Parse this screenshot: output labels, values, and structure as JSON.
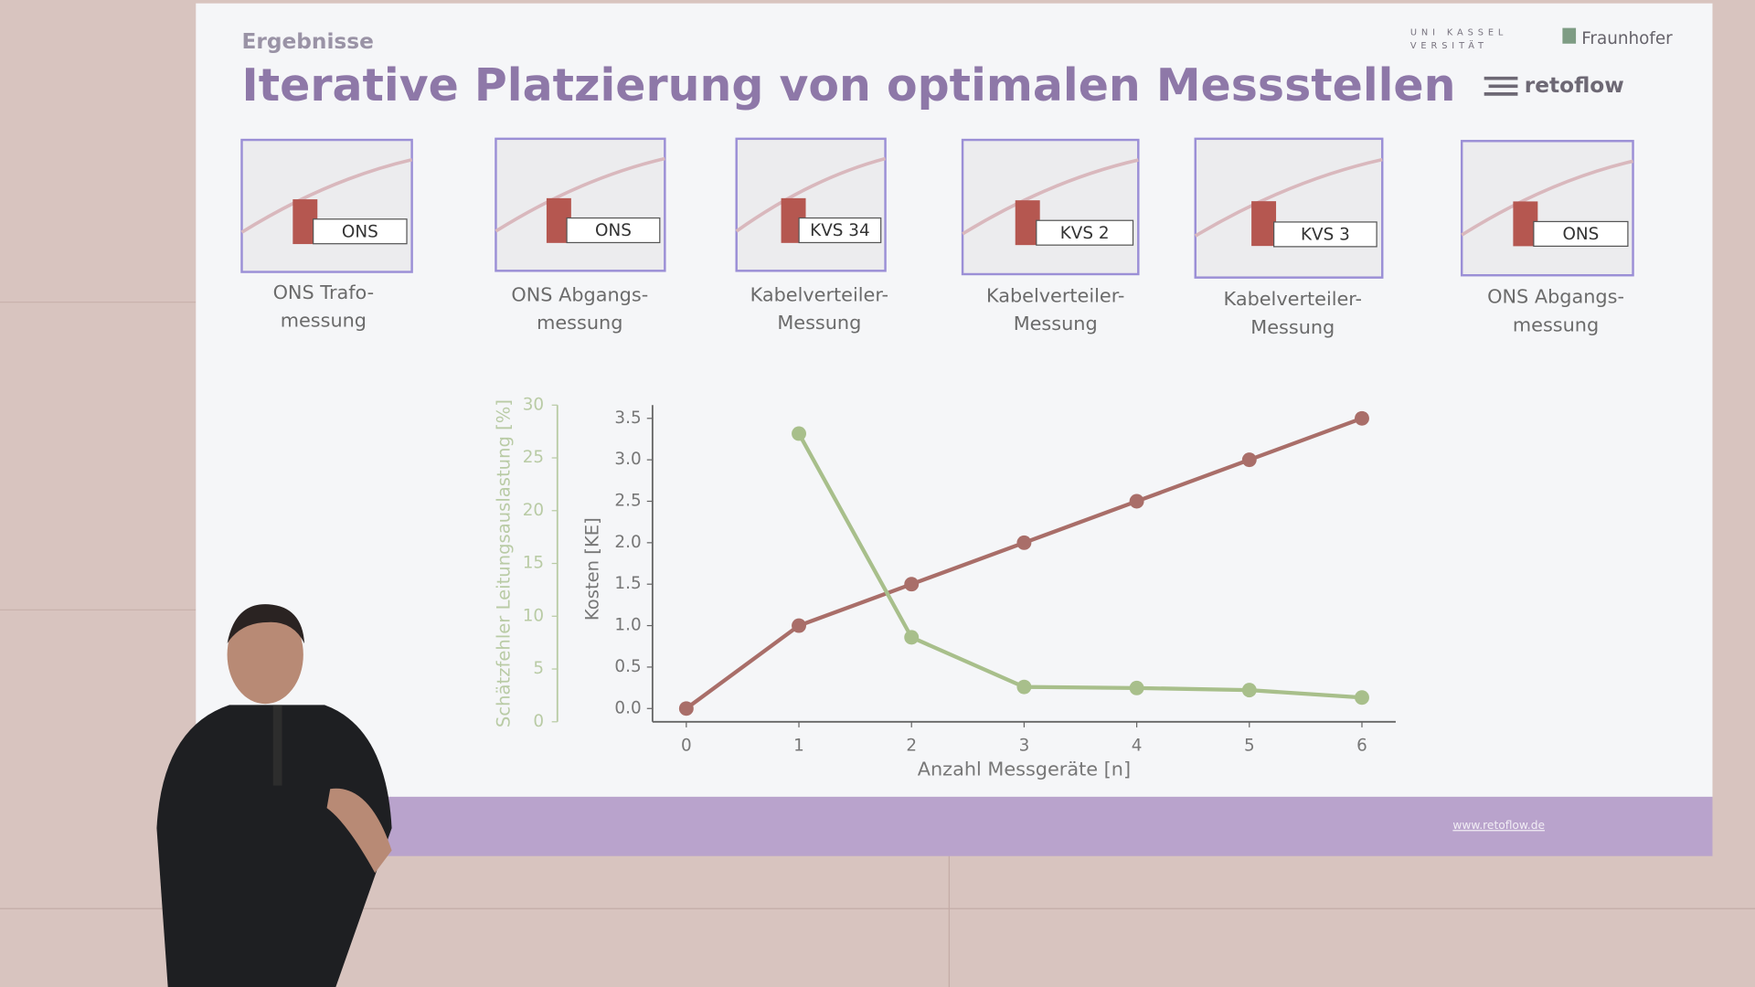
{
  "header": {
    "section": "Ergebnisse",
    "title": "Iterative Platzierung von optimalen Messstellen",
    "logos": {
      "university": [
        "UNI KASSEL",
        "VERSITÄT"
      ],
      "fraunhofer": "Fraunhofer",
      "company": "retoflow"
    }
  },
  "thumbnails": [
    {
      "label": "ONS",
      "caption": [
        "ONS Trafo-",
        "messung"
      ]
    },
    {
      "label": "ONS",
      "caption": [
        "ONS Abgangs-",
        "messung"
      ]
    },
    {
      "label": "KVS 34",
      "caption": [
        "Kabelverteiler-",
        "Messung"
      ]
    },
    {
      "label": "KVS 2",
      "caption": [
        "Kabelverteiler-",
        "Messung"
      ]
    },
    {
      "label": "KVS 3",
      "caption": [
        "Kabelverteiler-",
        "Messung"
      ]
    },
    {
      "label": "ONS",
      "caption": [
        "ONS Abgangs-",
        "messung"
      ]
    }
  ],
  "chart_data": {
    "type": "line",
    "x": [
      0,
      1,
      2,
      3,
      4,
      5,
      6
    ],
    "xlabel": "Anzahl Messgeräte [n]",
    "ylabel": "Kosten [KE]",
    "y2label": "Schätzfehler Leitungsauslastung [%]",
    "xlim": [
      -0.3,
      6.3
    ],
    "xticks": [
      0,
      1,
      2,
      3,
      4,
      5,
      6
    ],
    "ylim": [
      -0.16,
      3.66
    ],
    "yticks": [
      {
        "value": 0,
        "label": "0.0"
      },
      0.5,
      {
        "value": 1,
        "label": "1.0"
      },
      1.5,
      {
        "value": 2,
        "label": "2.0"
      },
      2.5,
      {
        "value": 3,
        "label": "3.0"
      },
      3.5
    ],
    "y2lim": [
      0,
      30
    ],
    "y2ticks": [
      0,
      5,
      10,
      15,
      20,
      25,
      30
    ],
    "series": [
      {
        "color": "#a96e69",
        "values": [
          0,
          1,
          1.5,
          2,
          2.5,
          3,
          3.5
        ]
      },
      {
        "color": "#a8bf8b",
        "axis": "y2",
        "values": [
          null,
          27.3,
          8,
          3.3,
          3.2,
          3,
          2.3
        ]
      }
    ]
  },
  "footer": {
    "url": "www.retoflow.de"
  }
}
